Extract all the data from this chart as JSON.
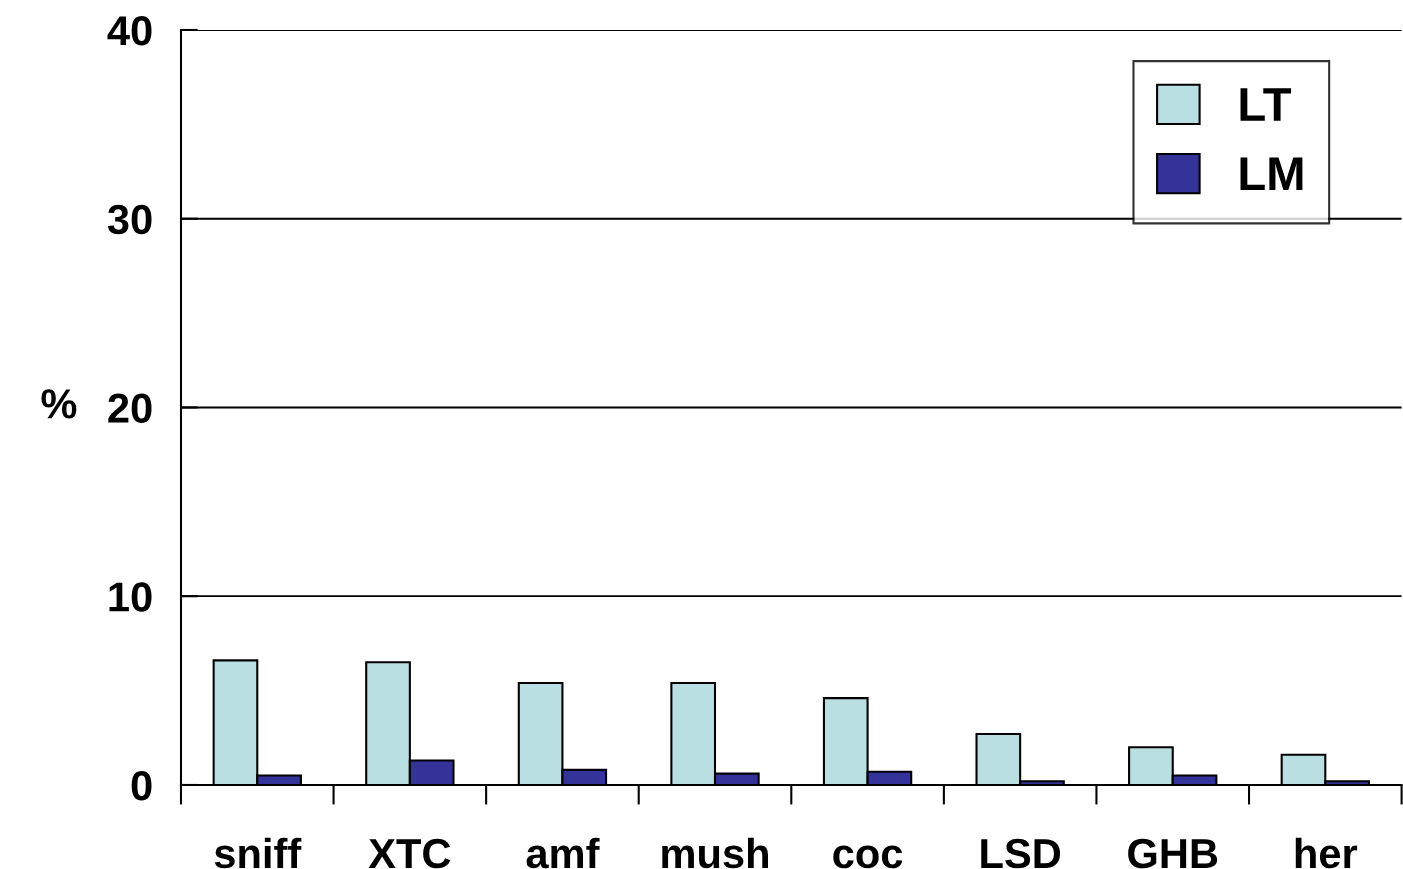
{
  "chart_data": {
    "type": "bar",
    "ylabel": "%",
    "categories": [
      "sniff",
      "XTC",
      "amf",
      "mush",
      "coc",
      "LSD",
      "GHB",
      "her"
    ],
    "series": [
      {
        "name": "LT",
        "color": "#b9dfe2",
        "values": [
          6.6,
          6.5,
          5.4,
          5.4,
          4.6,
          2.7,
          2.0,
          1.6
        ]
      },
      {
        "name": "LM",
        "color": "#333399",
        "values": [
          0.5,
          1.3,
          0.8,
          0.6,
          0.7,
          0.2,
          0.5,
          0.2
        ]
      }
    ],
    "ylim": [
      0,
      40
    ],
    "yticks": [
      0,
      10,
      20,
      30,
      40
    ],
    "grid": "y",
    "legend": "top right"
  }
}
